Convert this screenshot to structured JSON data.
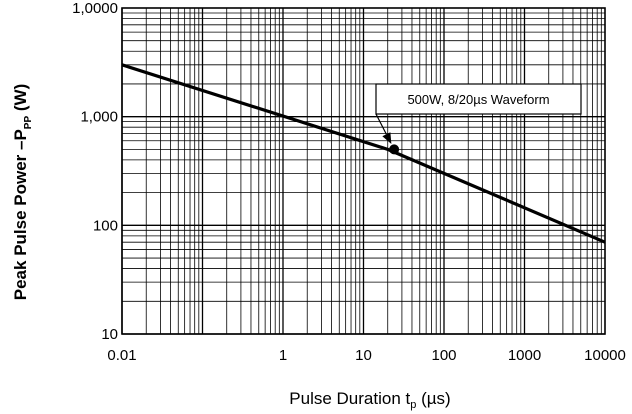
{
  "chart_data": {
    "type": "line",
    "title": "",
    "x_scale": "log",
    "y_scale": "log",
    "xlim": [
      0.01,
      10000
    ],
    "ylim": [
      10,
      10000
    ],
    "grid": true,
    "x_ticks": [
      0.01,
      1,
      10,
      100,
      1000,
      10000
    ],
    "x_tick_labels": [
      "0.01",
      "1",
      "10",
      "100",
      "1000",
      "10000"
    ],
    "y_ticks": [
      10,
      100,
      1000,
      10000
    ],
    "y_tick_labels": [
      "10",
      "100",
      "1,000",
      "1,0000"
    ],
    "xlabel": {
      "main": "Pulse Duration t",
      "sub": "p",
      "unit": " (µs)"
    },
    "ylabel": {
      "main": "Peak Pulse Power –P",
      "sub": "PP",
      "unit": " (W)"
    },
    "series": [
      {
        "x": [
          0.01,
          20,
          10000
        ],
        "y": [
          3000,
          500,
          70
        ],
        "color": "#000000"
      }
    ],
    "marker": {
      "x": 24,
      "y": 500,
      "label": "500W, 8/20µs Waveform"
    }
  }
}
